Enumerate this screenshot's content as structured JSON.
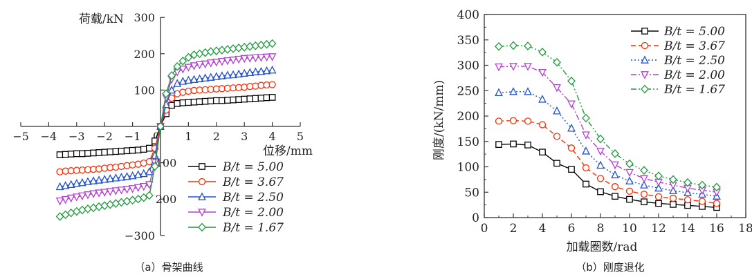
{
  "chart_data": [
    {
      "type": "line",
      "caption": "（a）骨架曲线",
      "xlabel": "位移/mm",
      "ylabel": "荷载/kN",
      "xlim": [
        -5,
        5
      ],
      "ylim": [
        -300,
        300
      ],
      "xticks": [
        "−5",
        "−4",
        "−3",
        "−2",
        "−1",
        "0",
        "1",
        "2",
        "3",
        "4",
        "5"
      ],
      "yticks": [
        "300",
        "200",
        "100",
        "100",
        "200",
        "−300"
      ],
      "legend_position": "lower-right",
      "series": [
        {
          "name": "B/t = 5.00",
          "color": "#000000",
          "marker": "square",
          "x": [
            -3.6,
            -3.4,
            -3.2,
            -3.0,
            -2.8,
            -2.6,
            -2.4,
            -2.2,
            -2.0,
            -1.8,
            -1.6,
            -1.4,
            -1.2,
            -1.0,
            -0.8,
            -0.6,
            -0.4,
            -0.2,
            0,
            0.2,
            0.4,
            0.6,
            0.8,
            1.0,
            1.2,
            1.4,
            1.6,
            1.8,
            2.0,
            2.2,
            2.4,
            2.6,
            2.8,
            3.0,
            3.2,
            3.4,
            3.6,
            3.8,
            4.0
          ],
          "y": [
            -78,
            -77,
            -76,
            -75,
            -75,
            -74,
            -73,
            -72,
            -71,
            -70,
            -69,
            -68,
            -67,
            -66,
            -65,
            -63,
            -60,
            -40,
            0,
            35,
            58,
            63,
            65,
            66,
            67,
            68,
            69,
            70,
            71,
            71,
            72,
            73,
            74,
            75,
            76,
            77,
            78,
            79,
            80
          ]
        },
        {
          "name": "B/t = 3.67",
          "color": "#ff2a00",
          "marker": "circle",
          "x": [
            -3.6,
            -3.4,
            -3.2,
            -3.0,
            -2.8,
            -2.6,
            -2.4,
            -2.2,
            -2.0,
            -1.8,
            -1.6,
            -1.4,
            -1.2,
            -1.0,
            -0.8,
            -0.6,
            -0.4,
            -0.2,
            0,
            0.2,
            0.4,
            0.6,
            0.8,
            1.0,
            1.2,
            1.4,
            1.6,
            1.8,
            2.0,
            2.2,
            2.4,
            2.6,
            2.8,
            3.0,
            3.2,
            3.4,
            3.6,
            3.8,
            4.0
          ],
          "y": [
            -125,
            -123,
            -122,
            -121,
            -120,
            -119,
            -118,
            -117,
            -115,
            -113,
            -112,
            -110,
            -108,
            -106,
            -104,
            -101,
            -97,
            -60,
            0,
            45,
            78,
            90,
            94,
            97,
            99,
            100,
            101,
            102,
            103,
            104,
            105,
            106,
            107,
            108,
            110,
            111,
            113,
            114,
            115
          ]
        },
        {
          "name": "B/t = 2.50",
          "color": "#2050d0",
          "marker": "triangle-up",
          "x": [
            -3.6,
            -3.4,
            -3.2,
            -3.0,
            -2.8,
            -2.6,
            -2.4,
            -2.2,
            -2.0,
            -1.8,
            -1.6,
            -1.4,
            -1.2,
            -1.0,
            -0.8,
            -0.6,
            -0.4,
            -0.2,
            0,
            0.2,
            0.4,
            0.6,
            0.8,
            1.0,
            1.2,
            1.4,
            1.6,
            1.8,
            2.0,
            2.2,
            2.4,
            2.6,
            2.8,
            3.0,
            3.2,
            3.4,
            3.6,
            3.8,
            4.0
          ],
          "y": [
            -166,
            -163,
            -160,
            -157,
            -155,
            -152,
            -150,
            -148,
            -146,
            -144,
            -142,
            -140,
            -138,
            -136,
            -133,
            -130,
            -125,
            -80,
            0,
            60,
            100,
            118,
            124,
            127,
            129,
            131,
            133,
            135,
            137,
            139,
            141,
            142,
            144,
            146,
            148,
            150,
            151,
            153,
            155
          ]
        },
        {
          "name": "B/t = 2.00",
          "color": "#b040d0",
          "marker": "triangle-down",
          "x": [
            -3.6,
            -3.4,
            -3.2,
            -3.0,
            -2.8,
            -2.6,
            -2.4,
            -2.2,
            -2.0,
            -1.8,
            -1.6,
            -1.4,
            -1.2,
            -1.0,
            -0.8,
            -0.6,
            -0.4,
            -0.2,
            0,
            0.2,
            0.4,
            0.6,
            0.8,
            1.0,
            1.2,
            1.4,
            1.6,
            1.8,
            2.0,
            2.2,
            2.4,
            2.6,
            2.8,
            3.0,
            3.2,
            3.4,
            3.6,
            3.8,
            4.0
          ],
          "y": [
            -205,
            -201,
            -197,
            -194,
            -191,
            -188,
            -185,
            -183,
            -181,
            -179,
            -177,
            -175,
            -173,
            -171,
            -168,
            -165,
            -160,
            -100,
            0,
            80,
            130,
            150,
            158,
            163,
            167,
            170,
            172,
            175,
            177,
            179,
            181,
            183,
            185,
            187,
            188,
            189,
            190,
            191,
            192
          ]
        },
        {
          "name": "B/t = 1.67",
          "color": "#1e9a3c",
          "marker": "diamond",
          "x": [
            -3.6,
            -3.4,
            -3.2,
            -3.0,
            -2.8,
            -2.6,
            -2.4,
            -2.2,
            -2.0,
            -1.8,
            -1.6,
            -1.4,
            -1.2,
            -1.0,
            -0.8,
            -0.6,
            -0.4,
            -0.2,
            0,
            0.2,
            0.4,
            0.6,
            0.8,
            1.0,
            1.2,
            1.4,
            1.6,
            1.8,
            2.0,
            2.2,
            2.4,
            2.6,
            2.8,
            3.0,
            3.2,
            3.4,
            3.6,
            3.8,
            4.0
          ],
          "y": [
            -248,
            -243,
            -238,
            -234,
            -230,
            -227,
            -224,
            -221,
            -218,
            -215,
            -212,
            -209,
            -206,
            -203,
            -200,
            -196,
            -190,
            -110,
            0,
            90,
            140,
            165,
            180,
            190,
            197,
            200,
            203,
            206,
            208,
            210,
            212,
            214,
            216,
            218,
            220,
            222,
            224,
            226,
            228
          ]
        }
      ]
    },
    {
      "type": "line",
      "caption": "（b）刚度退化",
      "xlabel": "加载圈数/rad",
      "ylabel": "刚度/(kN/mm)",
      "xlim": [
        0,
        18
      ],
      "ylim": [
        0,
        400
      ],
      "xticks": [
        "0",
        "2",
        "4",
        "6",
        "8",
        "10",
        "12",
        "14",
        "16",
        "18"
      ],
      "yticks": [
        "0",
        "50",
        "100",
        "150",
        "200",
        "250",
        "300",
        "350",
        "400"
      ],
      "legend_position": "top-right",
      "series": [
        {
          "name": "B/t = 5.00",
          "color": "#000000",
          "marker": "square",
          "dash": "solid",
          "x": [
            1,
            2,
            3,
            4,
            5,
            6,
            7,
            8,
            9,
            10,
            11,
            12,
            13,
            14,
            15,
            16
          ],
          "y": [
            144,
            145,
            143,
            129,
            107,
            95,
            66,
            51,
            42,
            36,
            31,
            28,
            26,
            24,
            22,
            20
          ]
        },
        {
          "name": "B/t = 3.67",
          "color": "#ff2a00",
          "marker": "circle",
          "dash": "dash",
          "x": [
            1,
            2,
            3,
            4,
            5,
            6,
            7,
            8,
            9,
            10,
            11,
            12,
            13,
            14,
            15,
            16
          ],
          "y": [
            190,
            191,
            190,
            183,
            160,
            137,
            98,
            77,
            61,
            52,
            46,
            41,
            38,
            35,
            32,
            28
          ]
        },
        {
          "name": "B/t = 2.50",
          "color": "#2050d0",
          "marker": "triangle-up",
          "dash": "dot",
          "x": [
            1,
            2,
            3,
            4,
            5,
            6,
            7,
            8,
            9,
            10,
            11,
            12,
            13,
            14,
            15,
            16
          ],
          "y": [
            246,
            248,
            248,
            233,
            210,
            176,
            131,
            103,
            84,
            72,
            64,
            58,
            53,
            49,
            46,
            42
          ]
        },
        {
          "name": "B/t = 2.00",
          "color": "#b040d0",
          "marker": "triangle-down",
          "dash": "dashdot",
          "x": [
            1,
            2,
            3,
            4,
            5,
            6,
            7,
            8,
            9,
            10,
            11,
            12,
            13,
            14,
            15,
            16
          ],
          "y": [
            297,
            298,
            298,
            286,
            256,
            224,
            163,
            131,
            104,
            89,
            77,
            70,
            64,
            58,
            54,
            50
          ]
        },
        {
          "name": "B/t = 1.67",
          "color": "#1e9a3c",
          "marker": "diamond",
          "dash": "dashdotdot",
          "x": [
            1,
            2,
            3,
            4,
            5,
            6,
            7,
            8,
            9,
            10,
            11,
            12,
            13,
            14,
            15,
            16
          ],
          "y": [
            337,
            339,
            338,
            326,
            306,
            269,
            196,
            155,
            126,
            106,
            93,
            82,
            75,
            69,
            64,
            60
          ]
        }
      ]
    }
  ]
}
